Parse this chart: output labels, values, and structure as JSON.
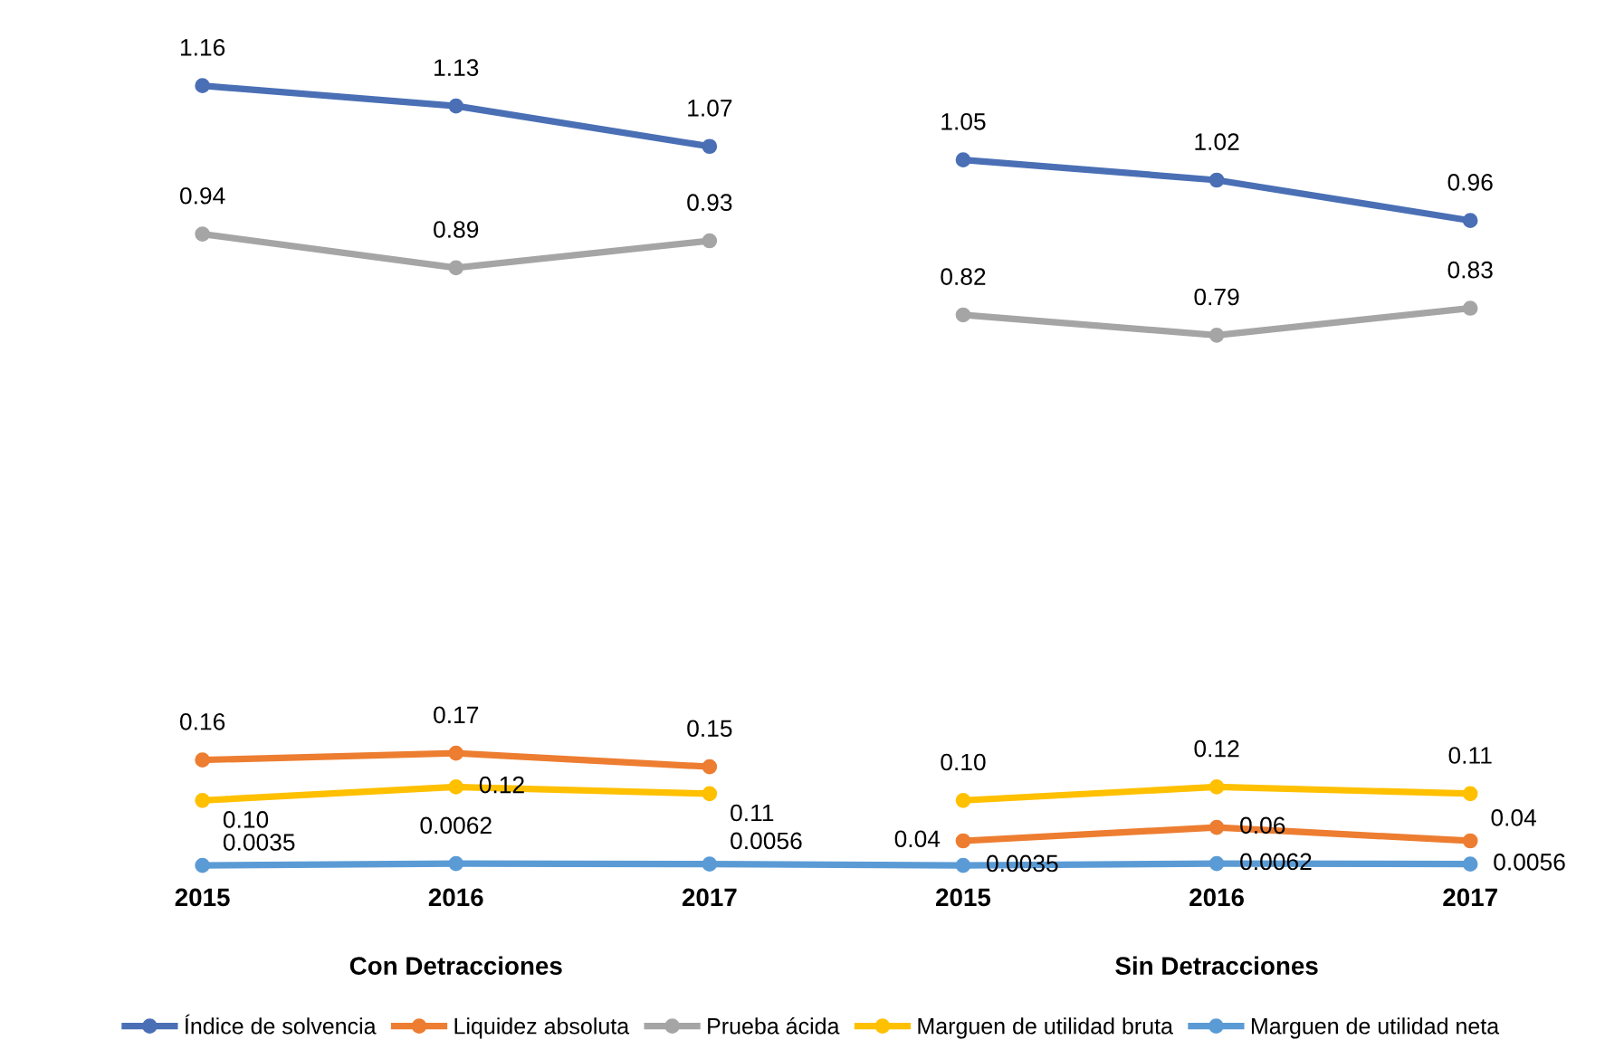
{
  "chart_data": {
    "type": "line",
    "categories": [
      "2015",
      "2016",
      "2017",
      "2015",
      "2016",
      "2017"
    ],
    "series": [
      {
        "name": "Índice de solvencia",
        "color": "#4a6fb5",
        "values": [
          1.16,
          1.13,
          1.07,
          null,
          null,
          null
        ],
        "value_labels": [
          "1.16",
          "1.13",
          "1.07",
          null,
          null,
          null
        ]
      },
      {
        "color": "#4a6fb5",
        "values": [
          null,
          null,
          null,
          1.05,
          1.02,
          0.96
        ],
        "value_labels": [
          null,
          null,
          null,
          "1.05",
          "1.02",
          "0.96"
        ]
      },
      {
        "name": "Liquidez absoluta",
        "color": "#ed7d31",
        "values": [
          0.16,
          0.17,
          0.15,
          null,
          null,
          null
        ],
        "value_labels": [
          "0.16",
          "0.17",
          "0.15",
          null,
          null,
          null
        ]
      },
      {
        "color": "#ed7d31",
        "values": [
          null,
          null,
          null,
          0.04,
          0.06,
          0.04
        ],
        "value_labels": [
          null,
          null,
          null,
          "0.04",
          "0.06",
          "0.04"
        ]
      },
      {
        "name": "Prueba ácida",
        "color": "#a5a5a5",
        "values": [
          0.94,
          0.89,
          0.93,
          null,
          null,
          null
        ],
        "value_labels": [
          "0.94",
          "0.89",
          "0.93",
          null,
          null,
          null
        ]
      },
      {
        "color": "#a5a5a5",
        "values": [
          null,
          null,
          null,
          0.82,
          0.79,
          0.83
        ],
        "value_labels": [
          null,
          null,
          null,
          "0.82",
          "0.79",
          "0.83"
        ]
      },
      {
        "name": "Marguen de utilidad bruta",
        "color": "#ffc000",
        "values": [
          0.1,
          0.12,
          0.11,
          null,
          null,
          null
        ],
        "value_labels": [
          "0.10",
          "0.12",
          "0.11",
          null,
          null,
          null
        ]
      },
      {
        "color": "#ffc000",
        "values": [
          null,
          null,
          null,
          0.1,
          0.12,
          0.11
        ],
        "value_labels": [
          null,
          null,
          null,
          "0.10",
          "0.12",
          "0.11"
        ]
      },
      {
        "name": "Marguen de utilidad neta",
        "color": "#5b9bd5",
        "values": [
          0.0035,
          0.0062,
          0.0056,
          0.0035,
          0.0062,
          0.0056
        ],
        "value_labels": [
          "0.0035",
          "0.0062",
          "0.0056",
          "0.0035",
          "0.0062",
          "0.0056"
        ]
      }
    ],
    "annotations": [
      "Con Detracciones",
      "Sin Detracciones"
    ],
    "tick_labels": "x",
    "marker": "circle",
    "line_style": "solid",
    "grid": false,
    "legend": "bottom"
  }
}
